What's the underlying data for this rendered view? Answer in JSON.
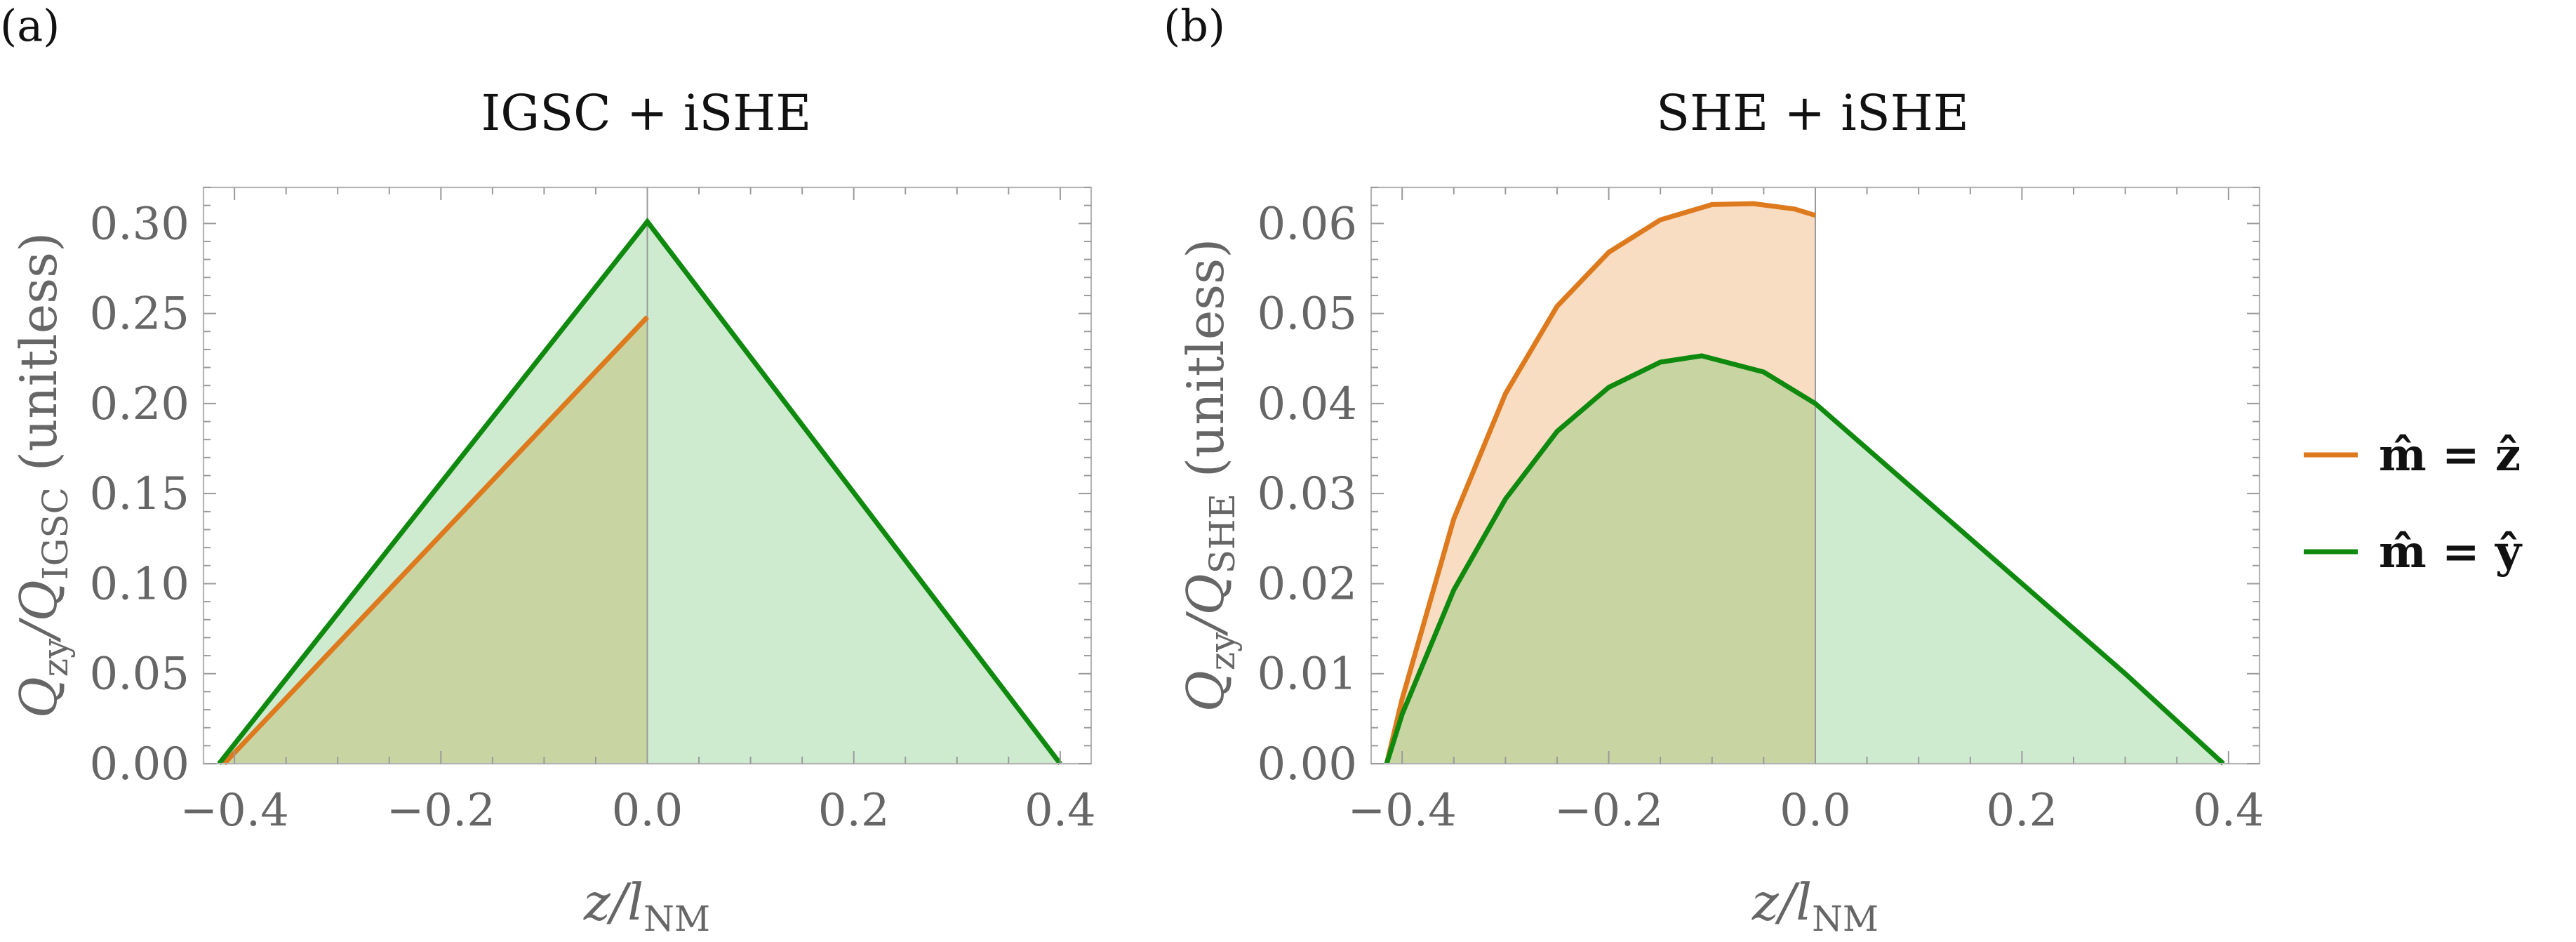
{
  "legend": [
    {
      "label": "m̂ = ẑ",
      "color": "#de7a1e"
    },
    {
      "label": "m̂ = ŷ",
      "color": "#0f8a0f"
    }
  ],
  "colors": {
    "orange": "#de7a1e",
    "green": "#0f8a0f",
    "orange_fill": "#f9ddc3",
    "green_fill": "#cfebcf",
    "overlap_fill": "#c8d5a3",
    "frame": "#b5b5b5",
    "tick_text": "#666666"
  },
  "chart_data": [
    {
      "panel_label": "(a)",
      "type": "line",
      "title": "IGSC + iSHE",
      "xlabel_main": "z/l",
      "xlabel_sub": "NM",
      "ylabel_lead": "Q",
      "ylabel_sub1": "zy",
      "ylabel_mid": "/Q",
      "ylabel_sub2": "IGSC",
      "ylabel_tail": " (unitless)",
      "xlim": [
        -0.43,
        0.43
      ],
      "ylim": [
        0,
        0.32
      ],
      "xticks": [
        -0.4,
        -0.2,
        0.0,
        0.2,
        0.4
      ],
      "xtick_labels": [
        "−0.4",
        "−0.2",
        "0.0",
        "0.2",
        "0.4"
      ],
      "yticks": [
        0,
        0.05,
        0.1,
        0.15,
        0.2,
        0.25,
        0.3
      ],
      "ytick_labels": [
        "0.00",
        "0.05",
        "0.10",
        "0.15",
        "0.20",
        "0.25",
        "0.30"
      ],
      "interface_x": 0.0,
      "series": [
        {
          "name": "m̂ = ẑ",
          "color_key": "orange",
          "x": [
            -0.41,
            0.0
          ],
          "y": [
            0.0,
            0.248
          ]
        },
        {
          "name": "m̂ = ŷ",
          "color_key": "green",
          "x": [
            -0.415,
            0.0,
            0.4
          ],
          "y": [
            0.0,
            0.301,
            0.0
          ]
        }
      ]
    },
    {
      "panel_label": "(b)",
      "type": "line",
      "title": "SHE + iSHE",
      "xlabel_main": "z/l",
      "xlabel_sub": "NM",
      "ylabel_lead": "Q",
      "ylabel_sub1": "zy",
      "ylabel_mid": "/Q",
      "ylabel_sub2": "SHE",
      "ylabel_tail": " (unitless)",
      "xlim": [
        -0.43,
        0.43
      ],
      "ylim": [
        0,
        0.064
      ],
      "xticks": [
        -0.4,
        -0.2,
        0.0,
        0.2,
        0.4
      ],
      "xtick_labels": [
        "−0.4",
        "−0.2",
        "0.0",
        "0.2",
        "0.4"
      ],
      "yticks": [
        0,
        0.01,
        0.02,
        0.03,
        0.04,
        0.05,
        0.06
      ],
      "ytick_labels": [
        "0.00",
        "0.01",
        "0.02",
        "0.03",
        "0.04",
        "0.05",
        "0.06"
      ],
      "interface_x": 0.0,
      "series": [
        {
          "name": "m̂ = ẑ",
          "color_key": "orange",
          "x": [
            -0.415,
            -0.4,
            -0.35,
            -0.3,
            -0.25,
            -0.2,
            -0.15,
            -0.1,
            -0.06,
            -0.02,
            0.0
          ],
          "y": [
            0.0,
            0.0072,
            0.0272,
            0.0411,
            0.0508,
            0.0568,
            0.0604,
            0.0621,
            0.0622,
            0.0616,
            0.0609
          ]
        },
        {
          "name": "m̂ = ŷ",
          "color_key": "green",
          "x": [
            -0.415,
            -0.4,
            -0.35,
            -0.3,
            -0.25,
            -0.2,
            -0.15,
            -0.11,
            -0.05,
            0.0,
            0.1,
            0.2,
            0.3,
            0.395
          ],
          "y": [
            0.0,
            0.0055,
            0.0193,
            0.0294,
            0.0369,
            0.0418,
            0.0446,
            0.0453,
            0.0435,
            0.04,
            0.03,
            0.02,
            0.01,
            0.0
          ]
        }
      ]
    }
  ]
}
